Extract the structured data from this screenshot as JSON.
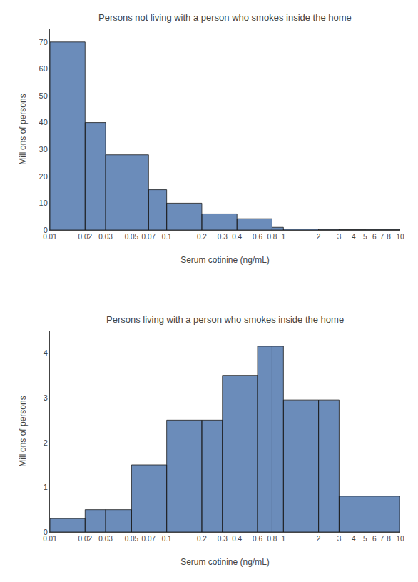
{
  "chart_data": [
    {
      "type": "histogram",
      "title": "Persons not living with a person who smokes inside the home",
      "xlabel": "Serum cotinine (ng/mL)",
      "ylabel": "Millions of persons",
      "bins": [
        0.01,
        0.02,
        0.03,
        0.07,
        0.1,
        0.2,
        0.4,
        0.8,
        1.0,
        2.0,
        3.0,
        5.0,
        10.0
      ],
      "values": [
        70,
        40,
        28,
        15,
        10,
        6,
        4.2,
        1.0,
        0.4,
        0.2,
        0.15,
        0.1
      ],
      "color": "#6b8cba",
      "log": "x",
      "xlim": [
        0.01,
        10
      ],
      "xticks": [
        0.01,
        0.02,
        0.03,
        0.05,
        0.07,
        0.1,
        0.2,
        0.3,
        0.4,
        0.6,
        0.8,
        1,
        2,
        3,
        4,
        5,
        6,
        7,
        8,
        10
      ],
      "ylim": [
        0,
        75
      ],
      "yticks": [
        0,
        10,
        20,
        30,
        40,
        50,
        60,
        70
      ],
      "grid": false
    },
    {
      "type": "histogram",
      "title": "Persons living with a person who smokes inside the home",
      "xlabel": "Serum cotinine (ng/mL)",
      "ylabel": "Millions of persons",
      "bins": [
        0.01,
        0.02,
        0.03,
        0.05,
        0.1,
        0.2,
        0.3,
        0.6,
        0.8,
        1.0,
        2.0,
        3.0,
        10.0
      ],
      "values": [
        0.3,
        0.5,
        0.5,
        1.5,
        2.5,
        2.5,
        3.5,
        4.15,
        4.15,
        2.95,
        2.95,
        0.8
      ],
      "color": "#6b8cba",
      "log": "x",
      "xlim": [
        0.01,
        10
      ],
      "xticks": [
        0.01,
        0.02,
        0.03,
        0.05,
        0.07,
        0.1,
        0.2,
        0.3,
        0.4,
        0.6,
        0.8,
        1,
        2,
        3,
        4,
        5,
        6,
        7,
        8,
        10
      ],
      "ylim": [
        0,
        4.5
      ],
      "yticks": [
        0,
        1,
        2,
        3,
        4
      ],
      "grid": false
    }
  ]
}
